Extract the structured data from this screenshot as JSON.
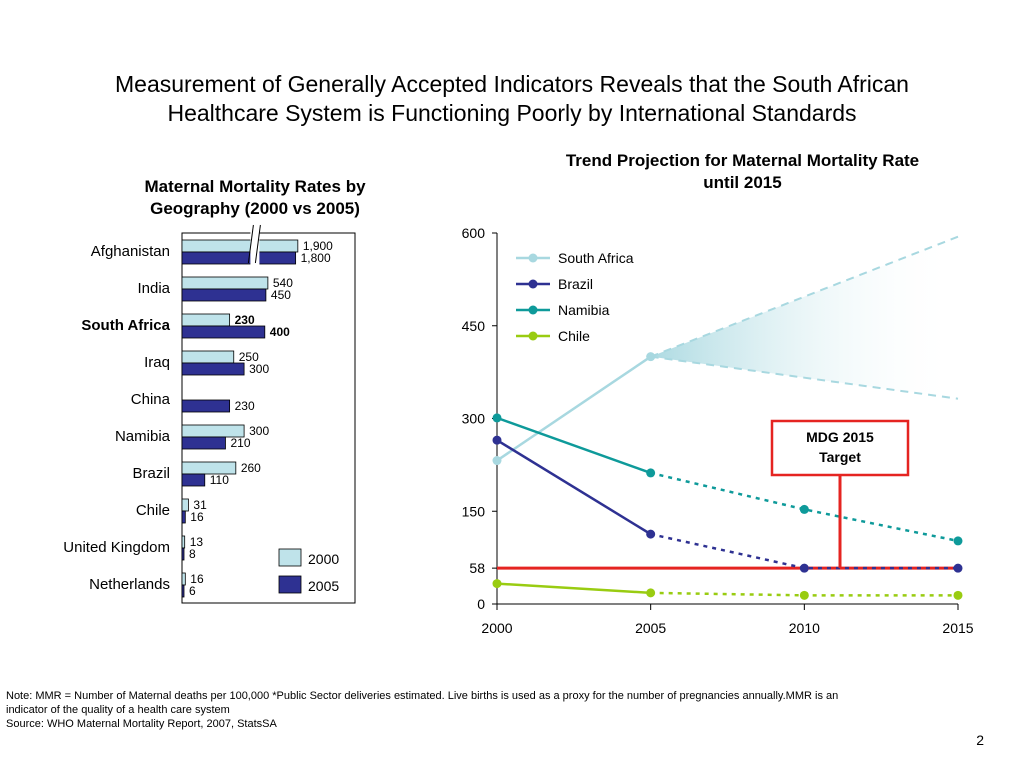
{
  "slide": {
    "title_line1": "Measurement of Generally Accepted Indicators Reveals that the South African",
    "title_line2": "Healthcare System is Functioning Poorly by International Standards",
    "note_line1": "Note: MMR = Number of Maternal deaths per 100,000 *Public Sector deliveries estimated. Live births is used as a proxy for the number of pregnancies annually.MMR is an",
    "note_line2": "indicator of the quality of a health care system",
    "source": "Source: WHO Maternal Mortality Report, 2007, StatsSA",
    "page_number": "2"
  },
  "chart_data": [
    {
      "type": "bar",
      "orientation": "horizontal",
      "title_line1": "Maternal Mortality Rates by",
      "title_line2": "Geography (2000 vs 2005)",
      "axis_break": true,
      "categories": [
        "Afghanistan",
        "India",
        "South Africa",
        "Iraq",
        "China",
        "Namibia",
        "Brazil",
        "Chile",
        "United Kingdom",
        "Netherlands"
      ],
      "highlight_category": "South Africa",
      "series": [
        {
          "name": "2000",
          "color": "#bfe3ea",
          "values": [
            1900,
            540,
            230,
            250,
            null,
            300,
            260,
            31,
            13,
            16
          ]
        },
        {
          "name": "2005",
          "color": "#2e3192",
          "values": [
            1800,
            450,
            400,
            300,
            230,
            210,
            110,
            16,
            8,
            6
          ]
        }
      ],
      "legend_position": "bottom-right"
    },
    {
      "type": "line",
      "title_line1": "Trend Projection for Maternal Mortality Rate",
      "title_line2": "until 2015",
      "x": [
        2000,
        2005,
        2010,
        2015
      ],
      "ylim": [
        0,
        600
      ],
      "yticks": [
        0,
        58,
        150,
        300,
        450,
        600
      ],
      "xticks": [
        2000,
        2005,
        2010,
        2015
      ],
      "legend_position": "top-left",
      "series": [
        {
          "name": "South Africa",
          "color": "#a8d8e0",
          "values": [
            232,
            400,
            null,
            null
          ],
          "projection_low": [
            null,
            400,
            366,
            332
          ],
          "projection_high": [
            null,
            400,
            497,
            594
          ]
        },
        {
          "name": "Brazil",
          "color": "#2e3192",
          "values": [
            265,
            113,
            58,
            58
          ],
          "solid_until": 2005
        },
        {
          "name": "Namibia",
          "color": "#0e9a9a",
          "values": [
            301,
            212,
            153,
            102
          ],
          "solid_until": 2005
        },
        {
          "name": "Chile",
          "color": "#99cc11",
          "values": [
            33,
            18,
            14,
            14
          ],
          "solid_until": 2005
        }
      ],
      "target_line": {
        "value": 58,
        "color": "#e52421"
      },
      "annotation": {
        "line1": "MDG 2015",
        "line2": "Target",
        "color": "#e52421"
      }
    }
  ]
}
